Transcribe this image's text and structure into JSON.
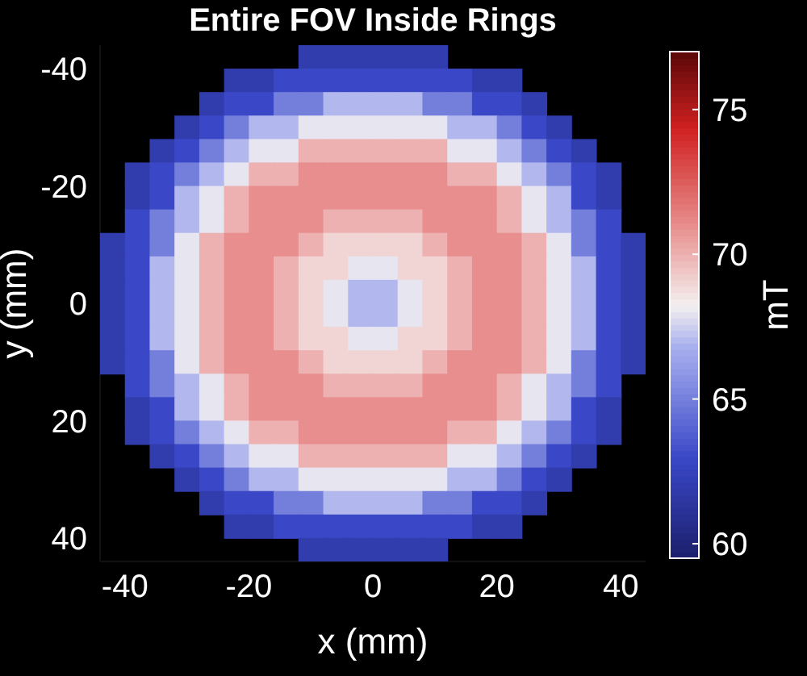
{
  "chart_data": {
    "type": "heatmap",
    "title": "Entire FOV Inside Rings",
    "xlabel": "x (mm)",
    "ylabel": "y (mm)",
    "clabel": "mT",
    "x": [
      -42,
      -38,
      -34,
      -30,
      -26,
      -22,
      -18,
      -14,
      -10,
      -6,
      -2,
      2,
      6,
      10,
      14,
      18,
      22,
      26,
      30,
      34,
      38,
      42
    ],
    "xlim": [
      -44,
      44
    ],
    "xticks": [
      -40,
      -20,
      0,
      20,
      40
    ],
    "ylim": [
      44,
      -44
    ],
    "yticks": [
      -40,
      -20,
      0,
      20,
      40
    ],
    "clim": [
      59.5,
      77
    ],
    "cticks": [
      60,
      65,
      70,
      75
    ],
    "grid": false,
    "legend": false,
    "cells": [
      [
        null,
        null,
        null,
        null,
        null,
        null,
        null,
        null,
        62,
        62,
        62,
        62,
        62,
        62,
        null,
        null,
        null,
        null,
        null,
        null,
        null,
        null
      ],
      [
        null,
        null,
        null,
        null,
        null,
        62,
        62,
        63,
        63,
        63,
        63,
        63,
        63,
        63,
        63,
        62,
        62,
        null,
        null,
        null,
        null,
        null
      ],
      [
        null,
        null,
        null,
        null,
        62,
        63,
        63,
        65,
        65,
        67,
        67,
        67,
        67,
        65,
        65,
        63,
        63,
        62,
        null,
        null,
        null,
        null
      ],
      [
        null,
        null,
        null,
        62,
        63,
        65,
        67,
        67,
        68,
        68,
        68,
        68,
        68,
        68,
        67,
        67,
        65,
        63,
        62,
        null,
        null,
        null
      ],
      [
        null,
        null,
        62,
        63,
        65,
        67,
        68,
        68,
        70,
        70,
        70,
        70,
        70,
        70,
        68,
        68,
        67,
        65,
        63,
        62,
        null,
        null
      ],
      [
        null,
        62,
        63,
        65,
        67,
        68,
        70,
        70,
        71,
        71,
        71,
        71,
        71,
        71,
        70,
        70,
        68,
        67,
        65,
        63,
        62,
        null
      ],
      [
        null,
        62,
        63,
        67,
        68,
        70,
        71,
        71,
        71,
        71,
        71,
        71,
        71,
        71,
        71,
        71,
        70,
        68,
        67,
        63,
        62,
        null
      ],
      [
        null,
        63,
        65,
        67,
        68,
        70,
        71,
        71,
        71,
        70,
        70,
        70,
        70,
        71,
        71,
        71,
        70,
        68,
        67,
        65,
        63,
        null
      ],
      [
        62,
        63,
        65,
        68,
        70,
        71,
        71,
        71,
        70,
        69,
        69,
        69,
        69,
        70,
        71,
        71,
        71,
        70,
        68,
        65,
        63,
        62
      ],
      [
        62,
        63,
        67,
        68,
        70,
        71,
        71,
        70,
        69,
        69,
        68,
        68,
        69,
        69,
        70,
        71,
        71,
        70,
        68,
        67,
        63,
        62
      ],
      [
        62,
        63,
        67,
        68,
        70,
        71,
        71,
        70,
        69,
        68,
        67,
        67,
        68,
        69,
        70,
        71,
        71,
        70,
        68,
        67,
        63,
        62
      ],
      [
        62,
        63,
        67,
        68,
        70,
        71,
        71,
        70,
        69,
        68,
        67,
        67,
        68,
        69,
        70,
        71,
        71,
        70,
        68,
        67,
        63,
        62
      ],
      [
        62,
        63,
        67,
        68,
        70,
        71,
        71,
        70,
        69,
        69,
        68,
        68,
        69,
        69,
        70,
        71,
        71,
        70,
        68,
        67,
        63,
        62
      ],
      [
        62,
        63,
        65,
        68,
        70,
        71,
        71,
        71,
        70,
        69,
        69,
        69,
        69,
        70,
        71,
        71,
        71,
        70,
        68,
        65,
        63,
        62
      ],
      [
        null,
        63,
        65,
        67,
        68,
        70,
        71,
        71,
        71,
        70,
        70,
        70,
        70,
        71,
        71,
        71,
        70,
        68,
        67,
        65,
        63,
        null
      ],
      [
        null,
        62,
        63,
        67,
        68,
        70,
        71,
        71,
        71,
        71,
        71,
        71,
        71,
        71,
        71,
        71,
        70,
        68,
        67,
        63,
        62,
        null
      ],
      [
        null,
        62,
        63,
        65,
        67,
        68,
        70,
        70,
        71,
        71,
        71,
        71,
        71,
        71,
        70,
        70,
        68,
        67,
        65,
        63,
        62,
        null
      ],
      [
        null,
        null,
        62,
        63,
        65,
        67,
        68,
        68,
        70,
        70,
        70,
        70,
        70,
        70,
        68,
        68,
        67,
        65,
        63,
        62,
        null,
        null
      ],
      [
        null,
        null,
        null,
        62,
        63,
        65,
        67,
        67,
        68,
        68,
        68,
        68,
        68,
        68,
        67,
        67,
        65,
        63,
        62,
        null,
        null,
        null
      ],
      [
        null,
        null,
        null,
        null,
        62,
        63,
        63,
        65,
        65,
        67,
        67,
        67,
        67,
        65,
        65,
        63,
        63,
        62,
        null,
        null,
        null,
        null
      ],
      [
        null,
        null,
        null,
        null,
        null,
        62,
        62,
        63,
        63,
        63,
        63,
        63,
        63,
        63,
        63,
        62,
        62,
        null,
        null,
        null,
        null,
        null
      ],
      [
        null,
        null,
        null,
        null,
        null,
        null,
        null,
        null,
        62,
        62,
        62,
        62,
        62,
        62,
        null,
        null,
        null,
        null,
        null,
        null,
        null,
        null
      ]
    ]
  }
}
